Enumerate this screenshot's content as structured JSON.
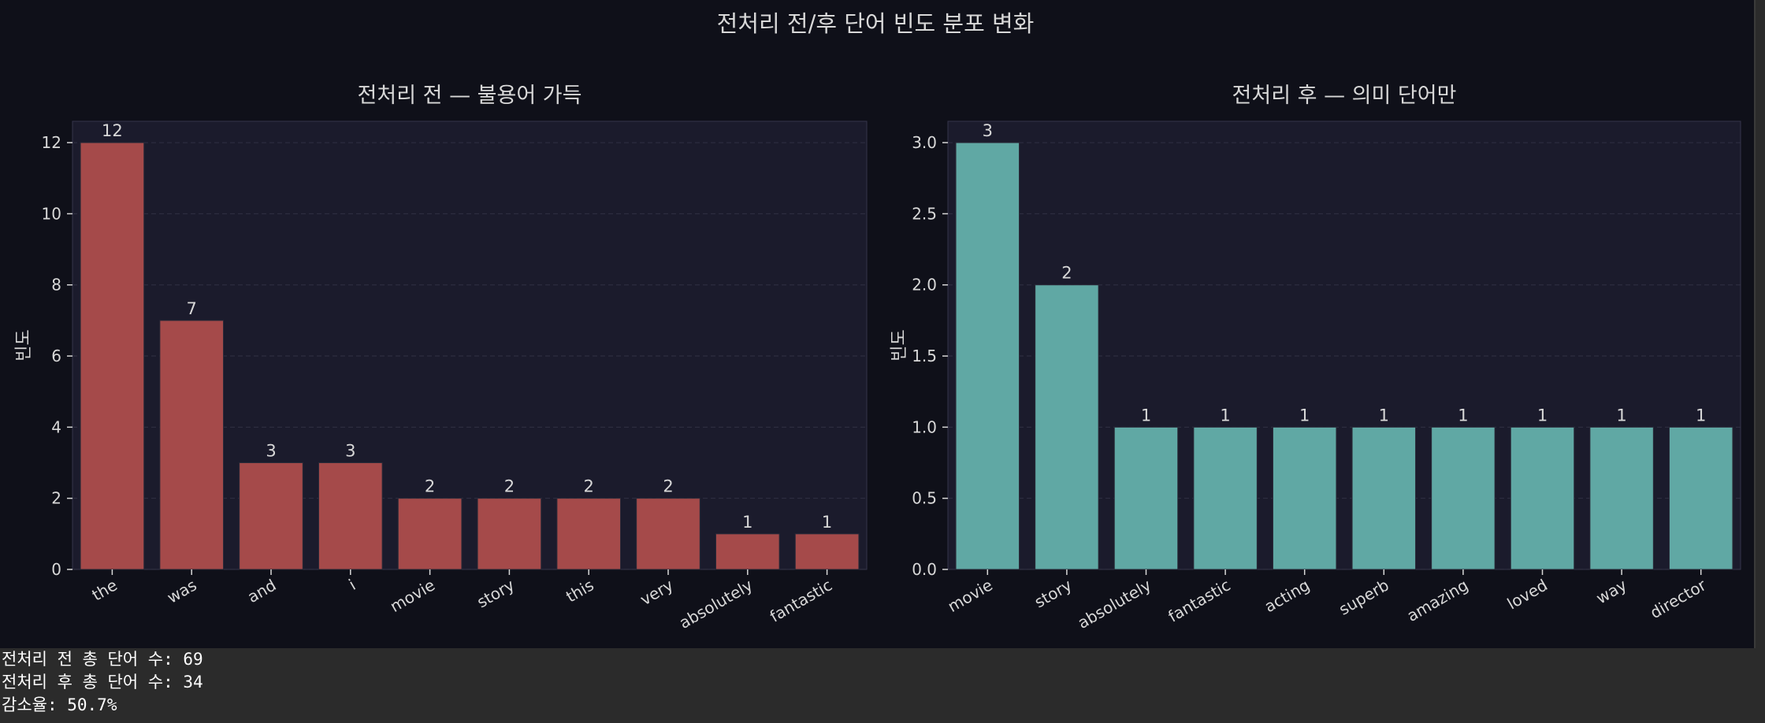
{
  "figure": {
    "title": "전처리 전/후 단어 빈도 분포 변화",
    "colors": {
      "background": "#0f1019",
      "axes_background": "#1b1b2c",
      "text": "#d8d8d8",
      "grid": "#3a3a4d"
    }
  },
  "chart_data": [
    {
      "type": "bar",
      "title": "전처리 전 — 불용어 가득",
      "xlabel": "",
      "ylabel": "빈도",
      "categories": [
        "the",
        "was",
        "and",
        "i",
        "movie",
        "story",
        "this",
        "very",
        "absolutely",
        "fantastic"
      ],
      "values": [
        12,
        7,
        3,
        3,
        2,
        2,
        2,
        2,
        1,
        1
      ],
      "data_labels": [
        "12",
        "7",
        "3",
        "3",
        "2",
        "2",
        "2",
        "2",
        "1",
        "1"
      ],
      "ylim": [
        0,
        12.6
      ],
      "yticks": [
        0,
        2,
        4,
        6,
        8,
        10,
        12
      ],
      "ytick_labels": [
        "0",
        "2",
        "4",
        "6",
        "8",
        "10",
        "12"
      ],
      "grid": true,
      "bar_color": "#a54a4a"
    },
    {
      "type": "bar",
      "title": "전처리 후 — 의미 단어만",
      "xlabel": "",
      "ylabel": "빈도",
      "categories": [
        "movie",
        "story",
        "absolutely",
        "fantastic",
        "acting",
        "superb",
        "amazing",
        "loved",
        "way",
        "director"
      ],
      "values": [
        3,
        2,
        1,
        1,
        1,
        1,
        1,
        1,
        1,
        1
      ],
      "data_labels": [
        "3",
        "2",
        "1",
        "1",
        "1",
        "1",
        "1",
        "1",
        "1",
        "1"
      ],
      "ylim": [
        0,
        3.15
      ],
      "yticks": [
        0,
        0.5,
        1,
        1.5,
        2,
        2.5,
        3
      ],
      "ytick_labels": [
        "0.0",
        "0.5",
        "1.0",
        "1.5",
        "2.0",
        "2.5",
        "3.0"
      ],
      "grid": true,
      "bar_color": "#60a8a4"
    }
  ],
  "output_lines": [
    "전처리 전 총 단어 수: 69",
    "전처리 후 총 단어 수: 34",
    "감소율: 50.7%"
  ]
}
